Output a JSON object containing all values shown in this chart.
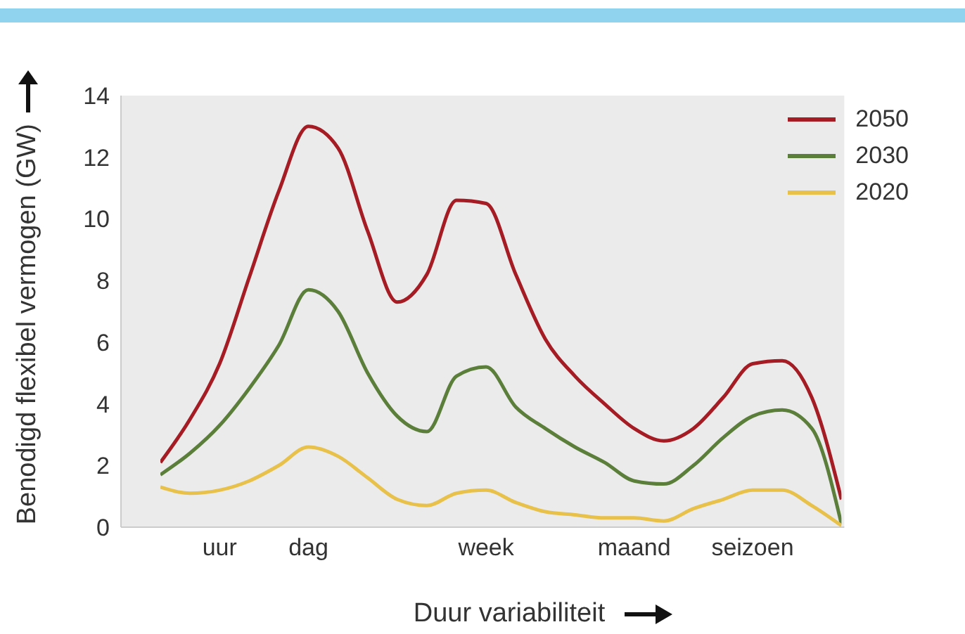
{
  "chart_data": {
    "type": "line",
    "xlabel": "Duur variabiliteit",
    "ylabel": "Benodigd flexibel vermogen (GW)",
    "categories": [
      null,
      null,
      "uur",
      null,
      null,
      "dag",
      null,
      null,
      null,
      null,
      null,
      "week",
      null,
      null,
      null,
      null,
      "maand",
      null,
      null,
      null,
      "seizoen",
      null,
      null,
      null
    ],
    "ylim": [
      0,
      14
    ],
    "yticks": [
      0,
      2,
      4,
      6,
      8,
      10,
      12,
      14
    ],
    "grid": false,
    "legend": "top right",
    "marker": "none",
    "line_style": "solid",
    "series": [
      {
        "name": "2050",
        "color": "#a51c24",
        "values": [
          2.1,
          3.5,
          5.3,
          8.1,
          10.9,
          13.0,
          12.3,
          9.6,
          7.3,
          8.2,
          10.6,
          10.5,
          8.2,
          6.1,
          4.9,
          4.0,
          3.2,
          2.8,
          3.2,
          4.2,
          5.3,
          5.4,
          4.2,
          0.9
        ]
      },
      {
        "name": "2030",
        "color": "#5b7f3a",
        "values": [
          1.7,
          2.4,
          3.3,
          4.5,
          5.9,
          7.7,
          7.0,
          5.0,
          3.6,
          3.1,
          4.9,
          5.2,
          3.9,
          3.2,
          2.6,
          2.1,
          1.5,
          1.4,
          2.0,
          2.9,
          3.6,
          3.8,
          3.2,
          0.1
        ]
      },
      {
        "name": "2020",
        "color": "#e8c14a",
        "values": [
          1.3,
          1.1,
          1.2,
          1.5,
          2.0,
          2.6,
          2.3,
          1.6,
          0.9,
          0.7,
          1.1,
          1.2,
          0.8,
          0.5,
          0.4,
          0.3,
          0.3,
          0.2,
          0.6,
          0.9,
          1.2,
          1.2,
          0.7,
          0.05
        ]
      }
    ]
  }
}
